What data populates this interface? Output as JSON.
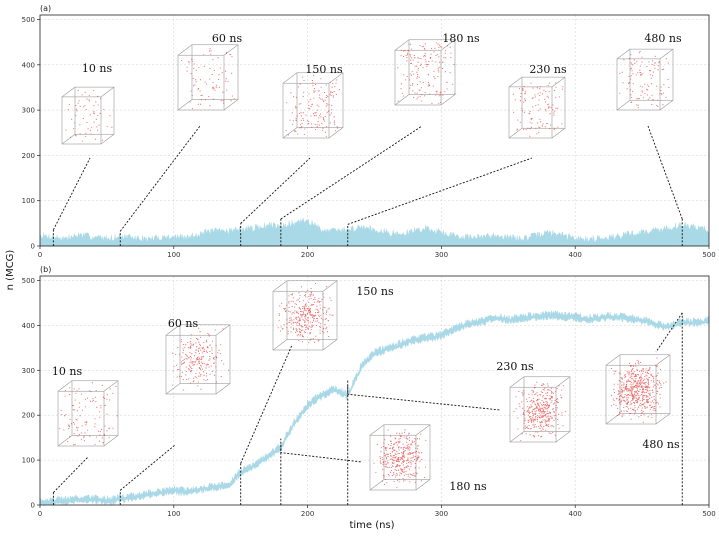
{
  "figure": {
    "ylabel": "n (MCG)",
    "xlabel": "time (ns)"
  },
  "chart_data": [
    {
      "type": "area",
      "panel_label": "(a)",
      "xlim": [
        0,
        500
      ],
      "ylim": [
        0,
        510
      ],
      "x_ticks": [
        "0",
        "100",
        "200",
        "300",
        "400",
        "500"
      ],
      "y_ticks": [
        "0",
        "100",
        "200",
        "300",
        "400",
        "500"
      ],
      "grid": true,
      "series_color": "#a9d8e6",
      "series": [
        {
          "x": [
            0,
            10,
            20,
            30,
            40,
            50,
            60,
            70,
            80,
            90,
            100,
            110,
            120,
            130,
            140,
            150,
            160,
            170,
            180,
            190,
            200,
            210,
            220,
            230,
            240,
            250,
            260,
            270,
            280,
            290,
            300,
            310,
            320,
            330,
            340,
            350,
            360,
            370,
            380,
            390,
            400,
            410,
            420,
            430,
            440,
            450,
            460,
            470,
            480,
            490,
            500
          ],
          "values": [
            18,
            15,
            12,
            20,
            15,
            12,
            16,
            13,
            10,
            14,
            16,
            13,
            24,
            28,
            30,
            32,
            35,
            40,
            42,
            45,
            52,
            32,
            28,
            30,
            38,
            33,
            25,
            20,
            30,
            35,
            25,
            18,
            15,
            14,
            20,
            14,
            12,
            18,
            25,
            20,
            12,
            10,
            14,
            16,
            22,
            25,
            30,
            35,
            42,
            38,
            30
          ]
        }
      ],
      "snapshots": [
        {
          "time": 10,
          "label": "10 ns"
        },
        {
          "time": 60,
          "label": "60 ns"
        },
        {
          "time": 150,
          "label": "150 ns"
        },
        {
          "time": 180,
          "label": "180 ns"
        },
        {
          "time": 230,
          "label": "230 ns"
        },
        {
          "time": 480,
          "label": "480 ns"
        }
      ]
    },
    {
      "type": "area",
      "panel_label": "(b)",
      "xlim": [
        0,
        500
      ],
      "ylim": [
        0,
        510
      ],
      "x_ticks": [
        "0",
        "100",
        "200",
        "300",
        "400",
        "500"
      ],
      "y_ticks": [
        "0",
        "100",
        "200",
        "300",
        "400",
        "500"
      ],
      "grid": true,
      "series_color": "#a9d8e6",
      "series": [
        {
          "x": [
            0,
            10,
            20,
            30,
            40,
            50,
            60,
            70,
            80,
            90,
            100,
            110,
            120,
            130,
            140,
            150,
            160,
            170,
            180,
            190,
            200,
            210,
            220,
            230,
            240,
            250,
            260,
            270,
            280,
            290,
            300,
            310,
            320,
            330,
            340,
            350,
            360,
            370,
            380,
            390,
            400,
            410,
            420,
            430,
            440,
            450,
            460,
            470,
            480,
            490,
            500
          ],
          "values": [
            8,
            10,
            12,
            15,
            14,
            12,
            15,
            20,
            25,
            30,
            35,
            30,
            38,
            42,
            45,
            75,
            90,
            110,
            130,
            185,
            225,
            245,
            260,
            245,
            310,
            340,
            350,
            360,
            370,
            375,
            380,
            395,
            405,
            410,
            420,
            415,
            418,
            422,
            425,
            422,
            420,
            416,
            420,
            422,
            418,
            414,
            405,
            398,
            410,
            408,
            412
          ]
        }
      ],
      "snapshots": [
        {
          "time": 10,
          "label": "10 ns"
        },
        {
          "time": 60,
          "label": "60 ns"
        },
        {
          "time": 150,
          "label": "150 ns"
        },
        {
          "time": 180,
          "label": "180 ns"
        },
        {
          "time": 230,
          "label": "230 ns"
        },
        {
          "time": 480,
          "label": "480 ns"
        }
      ]
    }
  ]
}
